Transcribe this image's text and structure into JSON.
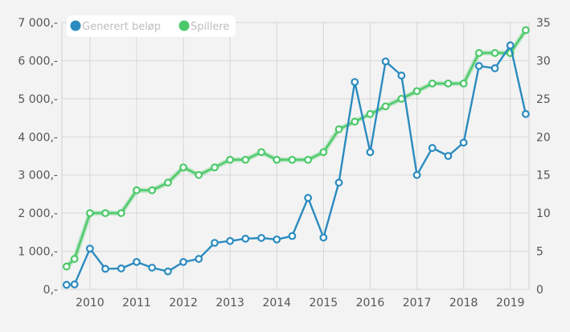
{
  "chart_data": {
    "type": "line",
    "legend": {
      "placement": "top-left"
    },
    "grid": true,
    "x_tick_labels": [
      "2010",
      "2011",
      "2012",
      "2013",
      "2014",
      "2015",
      "2016",
      "2017",
      "2018",
      "2019"
    ],
    "xlim": [
      2009.4,
      2019.4
    ],
    "ylim_left": [
      0,
      7000
    ],
    "ylim_right": [
      0,
      35
    ],
    "left_tick_labels": [
      "0,-",
      "1 000,-",
      "2 000,-",
      "3 000,-",
      "4 000,-",
      "5 000,-",
      "6 000,-",
      "7 000,-"
    ],
    "right_tick_labels": [
      "0",
      "5",
      "10",
      "15",
      "20",
      "25",
      "30",
      "35"
    ],
    "series": [
      {
        "name": "Generert beløp",
        "axis": "left",
        "color": "#2b8bbf",
        "x": [
          2009.5,
          2009.67,
          2010.0,
          2010.33,
          2010.67,
          2011.0,
          2011.33,
          2011.67,
          2012.0,
          2012.33,
          2012.67,
          2013.0,
          2013.33,
          2013.67,
          2014.0,
          2014.33,
          2014.67,
          2015.0,
          2015.33,
          2015.67,
          2016.0,
          2016.33,
          2016.67,
          2017.0,
          2017.33,
          2017.67,
          2018.0,
          2018.33,
          2018.67,
          2019.0,
          2019.33
        ],
        "values": [
          120,
          130,
          1070,
          540,
          550,
          720,
          570,
          470,
          720,
          800,
          1220,
          1270,
          1330,
          1350,
          1310,
          1400,
          2400,
          1360,
          2800,
          5440,
          3600,
          5980,
          5610,
          3000,
          3710,
          3500,
          3850,
          5860,
          5800,
          6400,
          4600
        ]
      },
      {
        "name": "Spillere",
        "axis": "right",
        "color": "#4cc96a",
        "x": [
          2009.5,
          2009.67,
          2010.0,
          2010.33,
          2010.67,
          2011.0,
          2011.33,
          2011.67,
          2012.0,
          2012.33,
          2012.67,
          2013.0,
          2013.33,
          2013.67,
          2014.0,
          2014.33,
          2014.67,
          2015.0,
          2015.33,
          2015.67,
          2016.0,
          2016.33,
          2016.67,
          2017.0,
          2017.33,
          2017.67,
          2018.0,
          2018.33,
          2018.67,
          2019.0,
          2019.33
        ],
        "values": [
          3,
          4,
          10,
          10,
          10,
          13,
          13,
          14,
          16,
          15,
          16,
          17,
          17,
          18,
          17,
          17,
          17,
          18,
          21,
          22,
          23,
          24,
          25,
          26,
          27,
          27,
          27,
          31,
          31,
          31,
          34
        ]
      }
    ]
  }
}
